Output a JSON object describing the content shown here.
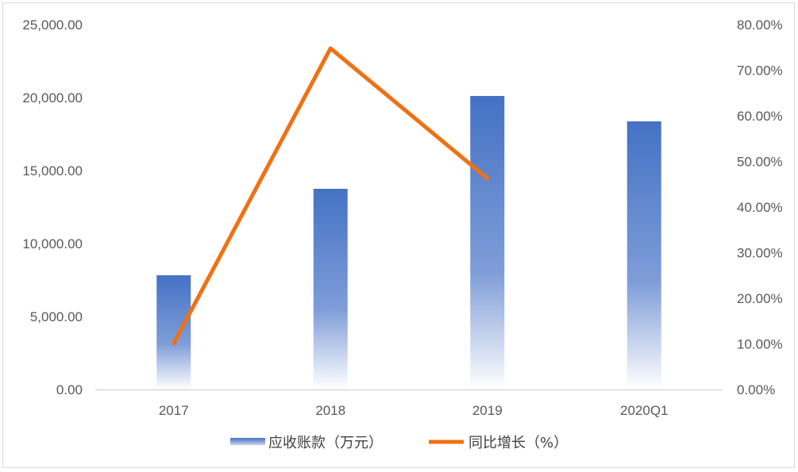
{
  "chart_data": {
    "type": "bar+line",
    "categories": [
      "2017",
      "2018",
      "2019",
      "2020Q1"
    ],
    "series": [
      {
        "name": "应收账款（万元）",
        "type": "bar",
        "axis": "left",
        "values": [
          7830,
          13750,
          20110,
          18370
        ],
        "color": "#4472c4"
      },
      {
        "name": "同比增长（%）",
        "type": "line",
        "axis": "right",
        "values": [
          10.1,
          74.8,
          46.3,
          null
        ],
        "color": "#f07114"
      }
    ],
    "left_axis": {
      "range": [
        0,
        25000
      ],
      "ticks": [
        "0.00",
        "5,000.00",
        "10,000.00",
        "15,000.00",
        "20,000.00",
        "25,000.00"
      ]
    },
    "right_axis": {
      "range": [
        0,
        80
      ],
      "ticks": [
        "0.00%",
        "10.00%",
        "20.00%",
        "30.00%",
        "40.00%",
        "50.00%",
        "60.00%",
        "70.00%",
        "80.00%"
      ]
    },
    "grid": false,
    "legend": "bottom"
  }
}
